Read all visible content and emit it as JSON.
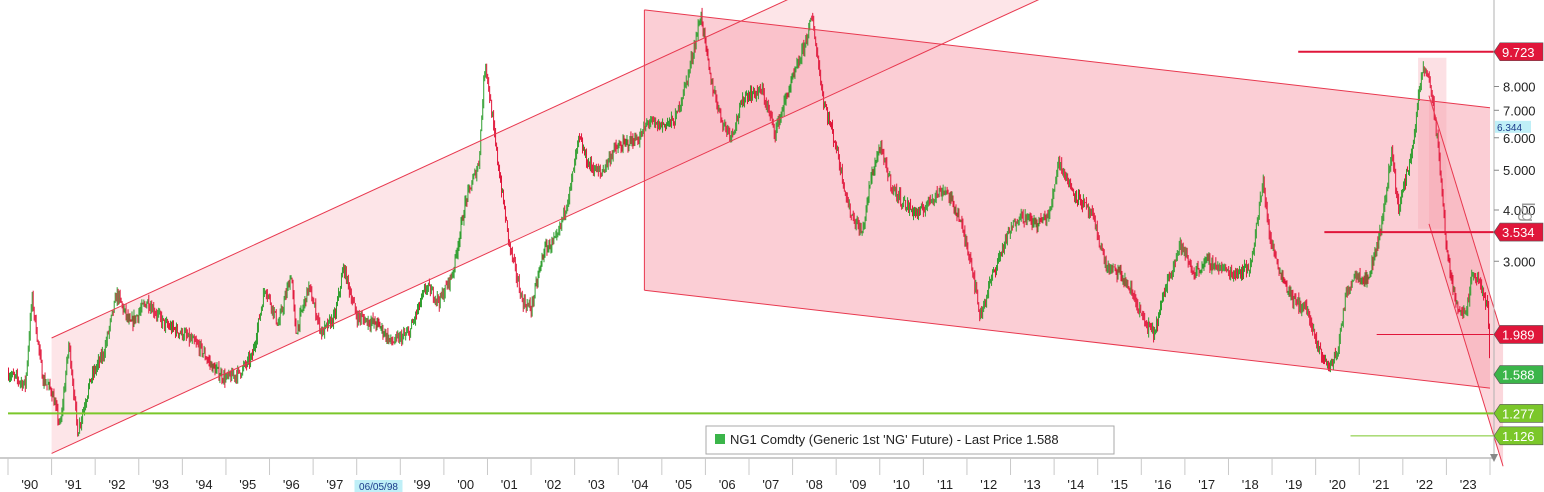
{
  "chart_data": {
    "type": "candlestick",
    "scale": "log",
    "ylim": [
      1.0,
      13.0
    ],
    "xlim": [
      1990.0,
      2024.0
    ],
    "y_ticks": [
      {
        "value": 3.0,
        "label": "3.000"
      },
      {
        "value": 4.0,
        "label": "4.000"
      },
      {
        "value": 5.0,
        "label": "5.000"
      },
      {
        "value": 6.0,
        "label": "6.000"
      },
      {
        "value": 7.0,
        "label": "7.000"
      },
      {
        "value": 8.0,
        "label": "8.000"
      }
    ],
    "x_ticks": [
      {
        "value": 1990.5,
        "label": "'90"
      },
      {
        "value": 1991.5,
        "label": "'91"
      },
      {
        "value": 1992.5,
        "label": "'92"
      },
      {
        "value": 1993.5,
        "label": "'93"
      },
      {
        "value": 1994.5,
        "label": "'94"
      },
      {
        "value": 1995.5,
        "label": "'95"
      },
      {
        "value": 1996.5,
        "label": "'96"
      },
      {
        "value": 1997.5,
        "label": "'97"
      },
      {
        "value": 1999.5,
        "label": "'99"
      },
      {
        "value": 2000.5,
        "label": "'00"
      },
      {
        "value": 2001.5,
        "label": "'01"
      },
      {
        "value": 2002.5,
        "label": "'02"
      },
      {
        "value": 2003.5,
        "label": "'03"
      },
      {
        "value": 2004.5,
        "label": "'04"
      },
      {
        "value": 2005.5,
        "label": "'05"
      },
      {
        "value": 2006.5,
        "label": "'06"
      },
      {
        "value": 2007.5,
        "label": "'07"
      },
      {
        "value": 2008.5,
        "label": "'08"
      },
      {
        "value": 2009.5,
        "label": "'09"
      },
      {
        "value": 2010.5,
        "label": "'10"
      },
      {
        "value": 2011.5,
        "label": "'11"
      },
      {
        "value": 2012.5,
        "label": "'12"
      },
      {
        "value": 2013.5,
        "label": "'13"
      },
      {
        "value": 2014.5,
        "label": "'14"
      },
      {
        "value": 2015.5,
        "label": "'15"
      },
      {
        "value": 2016.5,
        "label": "'16"
      },
      {
        "value": 2017.5,
        "label": "'17"
      },
      {
        "value": 2018.5,
        "label": "'18"
      },
      {
        "value": 2019.5,
        "label": "'19"
      },
      {
        "value": 2020.5,
        "label": "'20"
      },
      {
        "value": 2021.5,
        "label": "'21"
      },
      {
        "value": 2022.5,
        "label": "'22"
      },
      {
        "value": 2023.5,
        "label": "'23"
      }
    ],
    "crosshair_date": {
      "x": 1998.5,
      "label": "06/05/98",
      "overlap_label": "'98"
    },
    "price_anchors": [
      [
        1990.0,
        1.6
      ],
      [
        1990.4,
        1.5
      ],
      [
        1990.55,
        2.45
      ],
      [
        1990.8,
        1.55
      ],
      [
        1991.0,
        1.45
      ],
      [
        1991.2,
        1.18
      ],
      [
        1991.4,
        1.9
      ],
      [
        1991.6,
        1.15
      ],
      [
        1991.9,
        1.55
      ],
      [
        1992.2,
        1.8
      ],
      [
        1992.5,
        2.5
      ],
      [
        1992.8,
        2.1
      ],
      [
        1993.2,
        2.4
      ],
      [
        1993.6,
        2.1
      ],
      [
        1994.0,
        2.0
      ],
      [
        1994.4,
        1.85
      ],
      [
        1994.7,
        1.65
      ],
      [
        1995.0,
        1.55
      ],
      [
        1995.3,
        1.6
      ],
      [
        1995.6,
        1.75
      ],
      [
        1995.9,
        2.6
      ],
      [
        1996.2,
        2.1
      ],
      [
        1996.5,
        2.8
      ],
      [
        1996.6,
        2.0
      ],
      [
        1996.9,
        2.6
      ],
      [
        1997.2,
        2.0
      ],
      [
        1997.5,
        2.2
      ],
      [
        1997.7,
        2.9
      ],
      [
        1998.0,
        2.2
      ],
      [
        1998.5,
        2.1
      ],
      [
        1998.8,
        1.9
      ],
      [
        1999.2,
        2.0
      ],
      [
        1999.6,
        2.6
      ],
      [
        1999.9,
        2.4
      ],
      [
        2000.2,
        2.8
      ],
      [
        2000.5,
        4.2
      ],
      [
        2000.8,
        5.2
      ],
      [
        2000.95,
        9.3
      ],
      [
        2001.2,
        5.6
      ],
      [
        2001.5,
        3.3
      ],
      [
        2001.8,
        2.4
      ],
      [
        2002.0,
        2.3
      ],
      [
        2002.3,
        3.2
      ],
      [
        2002.6,
        3.4
      ],
      [
        2002.9,
        4.5
      ],
      [
        2003.1,
        6.0
      ],
      [
        2003.3,
        5.2
      ],
      [
        2003.6,
        4.9
      ],
      [
        2003.9,
        5.6
      ],
      [
        2004.3,
        5.9
      ],
      [
        2004.5,
        6.0
      ],
      [
        2004.7,
        6.6
      ],
      [
        2004.9,
        6.4
      ],
      [
        2005.3,
        6.6
      ],
      [
        2005.6,
        8.5
      ],
      [
        2005.9,
        12.0
      ],
      [
        2006.1,
        8.5
      ],
      [
        2006.4,
        6.5
      ],
      [
        2006.6,
        6.1
      ],
      [
        2006.9,
        7.6
      ],
      [
        2007.3,
        7.8
      ],
      [
        2007.6,
        6.2
      ],
      [
        2007.9,
        7.8
      ],
      [
        2008.2,
        9.5
      ],
      [
        2008.45,
        11.8
      ],
      [
        2008.7,
        7.5
      ],
      [
        2009.0,
        5.7
      ],
      [
        2009.3,
        4.0
      ],
      [
        2009.6,
        3.5
      ],
      [
        2009.8,
        4.8
      ],
      [
        2010.0,
        5.7
      ],
      [
        2010.3,
        4.5
      ],
      [
        2010.6,
        4.1
      ],
      [
        2010.9,
        3.9
      ],
      [
        2011.2,
        4.3
      ],
      [
        2011.5,
        4.5
      ],
      [
        2011.8,
        3.9
      ],
      [
        2012.1,
        3.0
      ],
      [
        2012.3,
        2.2
      ],
      [
        2012.6,
        2.8
      ],
      [
        2012.9,
        3.4
      ],
      [
        2013.2,
        3.9
      ],
      [
        2013.6,
        3.7
      ],
      [
        2013.9,
        3.9
      ],
      [
        2014.1,
        5.3
      ],
      [
        2014.4,
        4.5
      ],
      [
        2014.7,
        4.1
      ],
      [
        2014.9,
        3.8
      ],
      [
        2015.2,
        2.9
      ],
      [
        2015.5,
        2.8
      ],
      [
        2015.8,
        2.5
      ],
      [
        2016.1,
        2.1
      ],
      [
        2016.3,
        2.0
      ],
      [
        2016.6,
        2.7
      ],
      [
        2016.9,
        3.3
      ],
      [
        2017.2,
        2.8
      ],
      [
        2017.5,
        3.0
      ],
      [
        2017.8,
        2.9
      ],
      [
        2018.1,
        2.8
      ],
      [
        2018.5,
        2.9
      ],
      [
        2018.8,
        4.7
      ],
      [
        2018.95,
        3.4
      ],
      [
        2019.2,
        2.8
      ],
      [
        2019.5,
        2.4
      ],
      [
        2019.8,
        2.3
      ],
      [
        2020.0,
        1.9
      ],
      [
        2020.3,
        1.65
      ],
      [
        2020.5,
        1.8
      ],
      [
        2020.7,
        2.5
      ],
      [
        2020.9,
        2.8
      ],
      [
        2021.2,
        2.7
      ],
      [
        2021.5,
        3.6
      ],
      [
        2021.75,
        5.6
      ],
      [
        2021.9,
        4.0
      ],
      [
        2022.2,
        5.5
      ],
      [
        2022.45,
        8.8
      ],
      [
        2022.6,
        8.5
      ],
      [
        2022.75,
        6.5
      ],
      [
        2022.9,
        4.5
      ],
      [
        2023.0,
        3.2
      ],
      [
        2023.2,
        2.4
      ],
      [
        2023.45,
        2.2
      ],
      [
        2023.6,
        2.8
      ],
      [
        2023.8,
        2.6
      ],
      [
        2023.95,
        2.3
      ],
      [
        2024.0,
        1.6
      ]
    ],
    "channels": [
      {
        "from": [
          1991.0,
          1.95
        ],
        "to": [
          2015.0,
          29.0
        ],
        "band_to": [
          1991.0,
          1.02
        ],
        "style": "upper-light"
      },
      {
        "from": [
          2004.6,
          12.3
        ],
        "to": [
          2024.0,
          7.1
        ],
        "band_to": [
          2004.6,
          2.55
        ],
        "style": "main"
      },
      {
        "from": [
          2022.6,
          7.6
        ],
        "to": [
          2024.3,
          1.95
        ],
        "band_to": [
          2022.6,
          3.7
        ],
        "style": "steep"
      }
    ],
    "shaded_zones": [
      {
        "x0": 2022.35,
        "x1": 2023.0
      }
    ],
    "levels": [
      {
        "value": 9.723,
        "label": "9.723",
        "color": "#e0163a",
        "x_start": 2019.6,
        "width": 2
      },
      {
        "value": 3.534,
        "label": "3.534",
        "color": "#e0163a",
        "x_start": 2020.2,
        "width": 2
      },
      {
        "value": 1.989,
        "label": "1.989",
        "color": "#e0163a",
        "x_start": 2021.4,
        "width": 1
      },
      {
        "value": 1.277,
        "label": "1.277",
        "color": "#7bc72a",
        "x_start": 1990.0,
        "width": 2
      },
      {
        "value": 1.126,
        "label": "1.126",
        "color": "#7bc72a",
        "x_start": 2020.8,
        "width": 1
      }
    ],
    "last_price": {
      "value": 1.588,
      "label": "1.588",
      "color": "#3bb54a"
    },
    "crosshair_value": {
      "value": 6.344,
      "label": "6.344"
    },
    "axis_title": "Lg",
    "legend": {
      "text": "NG1 Comdty (Generic 1st 'NG' Future) - Last Price 1.588",
      "swatch_color": "#3bb54a",
      "position": "bottom-center"
    },
    "colors": {
      "up": "#2f9e2f",
      "down": "#e0163a",
      "channel_line": "#e8384f",
      "channel_fill": "#f7a6b2",
      "channel_fill_light": "#fbd3d9"
    }
  }
}
